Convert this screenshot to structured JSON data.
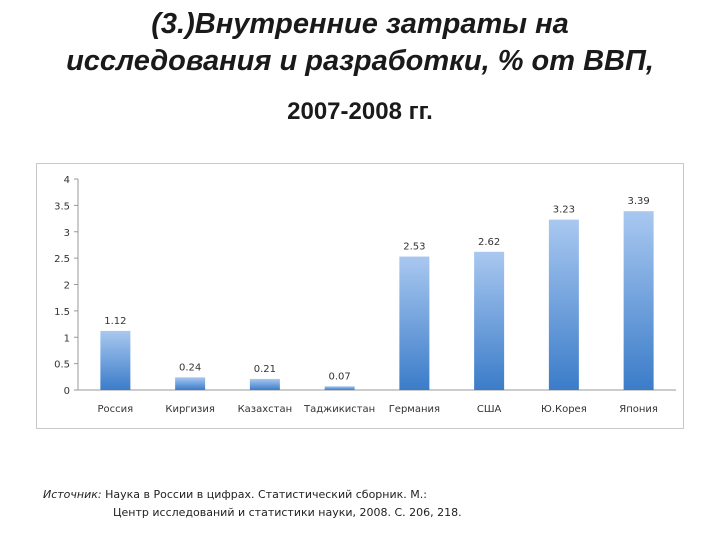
{
  "header": {
    "title_line1": "(3.)Внутренние затраты на",
    "title_line2": "исследования и разработки, % от ВВП,",
    "years": "2007-2008 гг."
  },
  "chart_data": {
    "type": "bar",
    "title": "",
    "xlabel": "",
    "ylabel": "",
    "categories": [
      "Россия",
      "Киргизия",
      "Казахстан",
      "Таджикистан",
      "Германия",
      "США",
      "Ю.Корея",
      "Япония"
    ],
    "values": [
      1.12,
      0.24,
      0.21,
      0.07,
      2.53,
      2.62,
      3.23,
      3.39
    ],
    "data_labels": [
      "1.12",
      "0.24",
      "0.21",
      "0.07",
      "2.53",
      "2.62",
      "3.23",
      "3.39"
    ],
    "yticks": [
      "0",
      "0.5",
      "1",
      "1.5",
      "2",
      "2.5",
      "3",
      "3.5",
      "4"
    ],
    "ylim": [
      0,
      4
    ],
    "grid": false,
    "legend": "none",
    "bar_color_top": "#a9c8f0",
    "bar_color_bottom": "#3b7cc9"
  },
  "source": {
    "label": "Источник:",
    "line1": " Наука в России в цифрах. Статистический сборник. М.:",
    "line2": "Центр исследований и статистики науки, 2008. С. 206, 218."
  }
}
